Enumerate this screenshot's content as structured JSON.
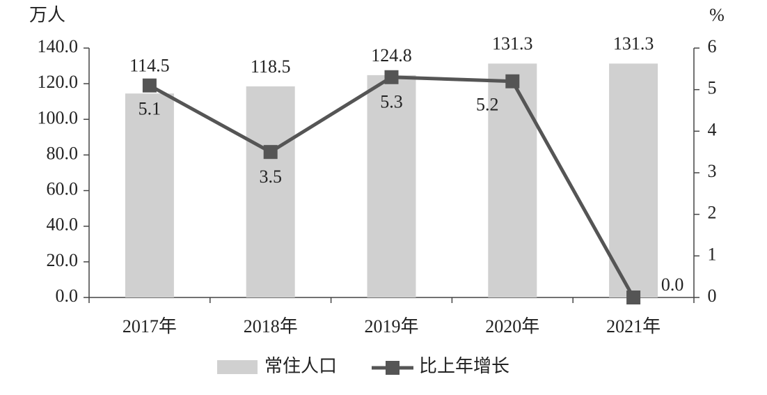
{
  "chart_data": {
    "type": "bar-line",
    "y_label": "万人",
    "y2_label": "%",
    "categories": [
      "2017年",
      "2018年",
      "2019年",
      "2020年",
      "2021年"
    ],
    "series": [
      {
        "name": "常住人口",
        "type": "bar",
        "color": "#d0d0d0",
        "values": [
          114.5,
          118.5,
          124.8,
          131.3,
          131.3
        ]
      },
      {
        "name": "比上年增长",
        "type": "line",
        "axis": "y2",
        "color": "#555555",
        "values": [
          5.1,
          3.5,
          5.3,
          5.2,
          0
        ],
        "value_labels": [
          "5.1",
          "3.5",
          "5.3",
          "5.2",
          "0.0"
        ]
      }
    ],
    "ylim": [
      0,
      140
    ],
    "yticks": [
      {
        "value": 0,
        "label": "0.0"
      },
      {
        "value": 20,
        "label": "20.0"
      },
      {
        "value": 40,
        "label": "40.0"
      },
      {
        "value": 60,
        "label": "60.0"
      },
      {
        "value": 80,
        "label": "80.0"
      },
      {
        "value": 100,
        "label": "100.0"
      },
      {
        "value": 120,
        "label": "120.0"
      },
      {
        "value": 140,
        "label": "140.0"
      }
    ],
    "y2lim": [
      0,
      6
    ],
    "y2ticks": [
      0,
      1,
      2,
      3,
      4,
      5,
      6
    ],
    "grid": false
  }
}
